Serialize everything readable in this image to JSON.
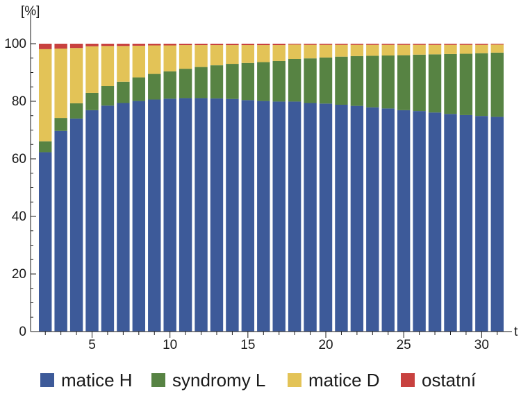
{
  "chart_data": {
    "type": "bar",
    "stacked": true,
    "xlabel": "t",
    "ylabel": "[%]",
    "ylim": [
      0,
      100
    ],
    "xlim": [
      1.5,
      31.5
    ],
    "x": [
      2,
      3,
      4,
      5,
      6,
      7,
      8,
      9,
      10,
      11,
      12,
      13,
      14,
      15,
      16,
      17,
      18,
      19,
      20,
      21,
      22,
      23,
      24,
      25,
      26,
      27,
      28,
      29,
      30,
      31
    ],
    "yticks": [
      0,
      20,
      40,
      60,
      80,
      100
    ],
    "xticks": [
      5,
      10,
      15,
      20,
      25,
      30
    ],
    "grid": false,
    "legend": "bottom",
    "series": [
      {
        "name": "matice H",
        "color": "#3d5a99",
        "values": [
          62.3,
          69.7,
          74.0,
          76.9,
          78.5,
          79.4,
          80.1,
          80.6,
          80.9,
          81.1,
          81.1,
          81.0,
          80.8,
          80.4,
          80.1,
          79.9,
          79.9,
          79.4,
          79.2,
          78.8,
          78.4,
          77.9,
          77.5,
          76.9,
          76.6,
          76.1,
          75.6,
          75.2,
          74.9,
          74.6
        ]
      },
      {
        "name": "syndromy L",
        "color": "#578343",
        "values": [
          3.8,
          4.5,
          5.3,
          6.0,
          6.8,
          7.4,
          8.2,
          8.9,
          9.5,
          10.2,
          10.8,
          11.5,
          12.2,
          12.9,
          13.5,
          14.1,
          14.8,
          15.5,
          16.0,
          16.7,
          17.3,
          17.9,
          18.4,
          19.1,
          19.6,
          20.2,
          20.8,
          21.3,
          21.8,
          22.3
        ]
      },
      {
        "name": "matice D",
        "color": "#e3c357",
        "values": [
          32.0,
          24.1,
          19.2,
          16.2,
          13.9,
          12.4,
          11.0,
          9.9,
          9.0,
          8.2,
          7.6,
          7.0,
          6.5,
          6.2,
          5.9,
          5.5,
          5.0,
          4.7,
          4.4,
          4.1,
          3.9,
          3.8,
          3.7,
          3.6,
          3.4,
          3.3,
          3.2,
          3.1,
          2.9,
          2.8
        ]
      },
      {
        "name": "ostatní",
        "color": "#c8413f",
        "values": [
          1.9,
          1.7,
          1.5,
          0.9,
          0.8,
          0.8,
          0.7,
          0.6,
          0.6,
          0.5,
          0.5,
          0.5,
          0.5,
          0.5,
          0.5,
          0.5,
          0.3,
          0.4,
          0.4,
          0.4,
          0.4,
          0.4,
          0.4,
          0.4,
          0.4,
          0.4,
          0.4,
          0.4,
          0.4,
          0.3
        ]
      }
    ]
  }
}
